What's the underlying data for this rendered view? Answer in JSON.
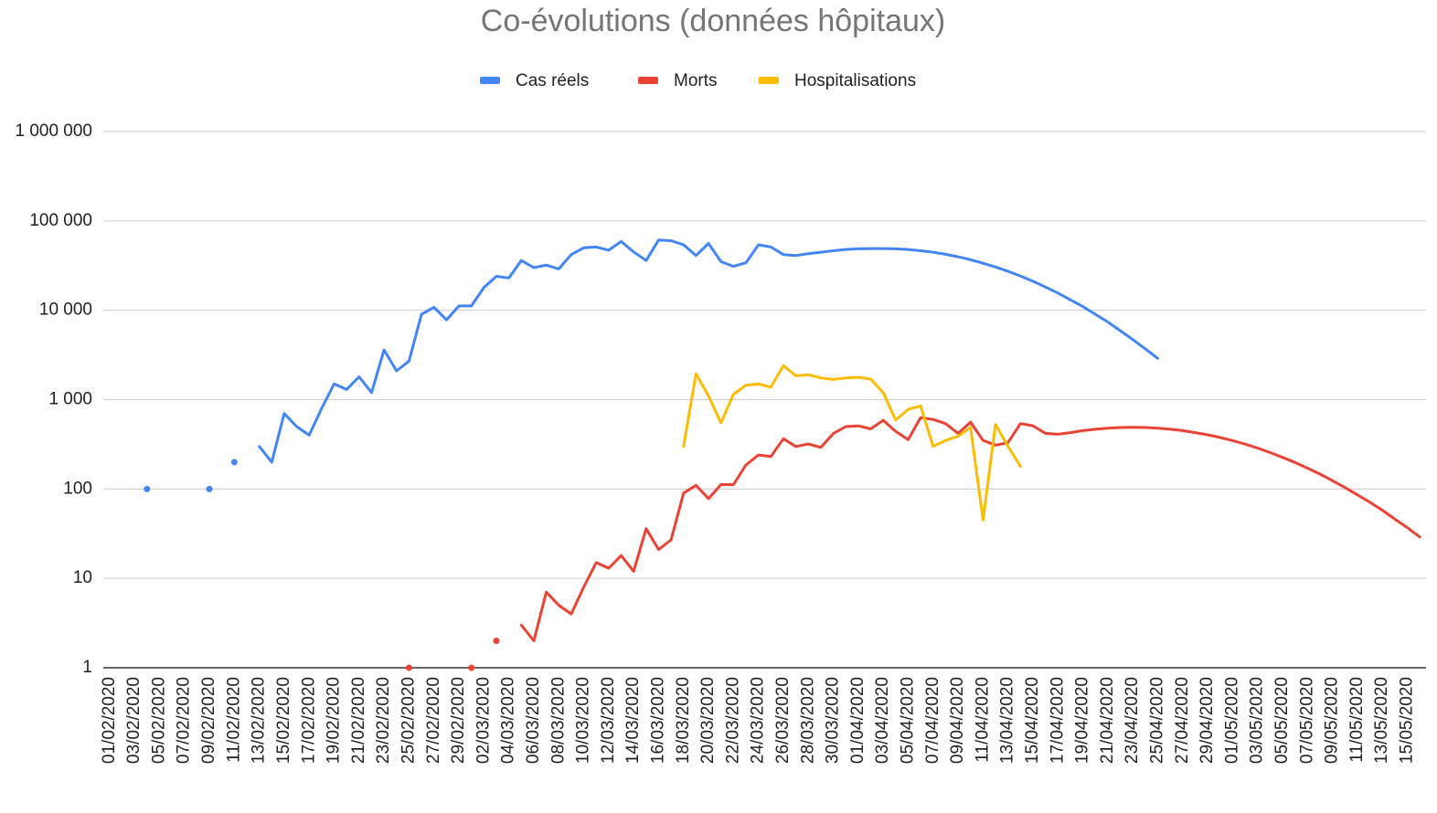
{
  "chart_data": {
    "type": "line",
    "title": "Co-évolutions (données hôpitaux)",
    "log_scale": true,
    "grid": true,
    "legend": "top",
    "ylim": [
      1,
      1000000
    ],
    "yticks": [
      {
        "value": 1,
        "label": "1"
      },
      {
        "value": 10,
        "label": "10"
      },
      {
        "value": 100,
        "label": "100"
      },
      {
        "value": 1000,
        "label": "1 000"
      },
      {
        "value": 10000,
        "label": "10 000"
      },
      {
        "value": 100000,
        "label": "100 000"
      },
      {
        "value": 1000000,
        "label": "1 000 000"
      }
    ],
    "categories": [
      "01/02/2020",
      null,
      "03/02/2020",
      null,
      "05/02/2020",
      null,
      "07/02/2020",
      null,
      "09/02/2020",
      null,
      "11/02/2020",
      null,
      "13/02/2020",
      null,
      "15/02/2020",
      null,
      "17/02/2020",
      null,
      "19/02/2020",
      null,
      "21/02/2020",
      null,
      "23/02/2020",
      null,
      "25/02/2020",
      null,
      "27/02/2020",
      null,
      "29/02/2020",
      null,
      "02/03/2020",
      null,
      "04/03/2020",
      null,
      "06/03/2020",
      null,
      "08/03/2020",
      null,
      "10/03/2020",
      null,
      "12/03/2020",
      null,
      "14/03/2020",
      null,
      "16/03/2020",
      null,
      "18/03/2020",
      null,
      "20/03/2020",
      null,
      "22/03/2020",
      null,
      "24/03/2020",
      null,
      "26/03/2020",
      null,
      "28/03/2020",
      null,
      "30/03/2020",
      null,
      "01/04/2020",
      null,
      "03/04/2020",
      null,
      "05/04/2020",
      null,
      "07/04/2020",
      null,
      "09/04/2020",
      null,
      "11/04/2020",
      null,
      "13/04/2020",
      null,
      "15/04/2020",
      null,
      "17/04/2020",
      null,
      "19/04/2020",
      null,
      "21/04/2020",
      null,
      "23/04/2020",
      null,
      "25/04/2020",
      null,
      "27/04/2020",
      null,
      "29/04/2020",
      null,
      "01/05/2020",
      null,
      "03/05/2020",
      null,
      "05/05/2020",
      null,
      "07/05/2020",
      null,
      "09/05/2020",
      null,
      "11/05/2020",
      null,
      "13/05/2020",
      null,
      "15/05/2020",
      null
    ],
    "series": [
      {
        "name": "Cas réels",
        "color": "#4285f4",
        "values": [
          null,
          null,
          null,
          100,
          null,
          null,
          null,
          null,
          100,
          null,
          200,
          null,
          300,
          200,
          700,
          500,
          400,
          800,
          1500,
          1300,
          1800,
          1200,
          3600,
          2100,
          2700,
          9000,
          10800,
          7800,
          11200,
          11200,
          18000,
          24000,
          23000,
          36000,
          30000,
          32000,
          29000,
          42000,
          50000,
          51000,
          47000,
          59000,
          45000,
          36000,
          61000,
          60000,
          54000,
          41000,
          56000,
          35000,
          31000,
          34000,
          54000,
          51000,
          42000,
          41000,
          43000,
          44600,
          46400,
          47900,
          48700,
          49000,
          49000,
          48700,
          47900,
          46400,
          44600,
          42300,
          39700,
          36800,
          33600,
          30500,
          27300,
          24200,
          21100,
          18200,
          15600,
          13100,
          11000,
          9000,
          7400,
          5900,
          4700,
          3700,
          2900,
          null,
          null,
          null,
          null,
          null,
          null,
          null,
          null,
          null,
          null,
          null,
          null,
          null,
          null,
          null,
          null,
          null,
          null,
          null,
          null,
          null
        ]
      },
      {
        "name": "Morts",
        "color": "#ea4335",
        "values": [
          null,
          null,
          null,
          null,
          null,
          null,
          null,
          null,
          null,
          null,
          null,
          null,
          null,
          null,
          null,
          null,
          null,
          null,
          null,
          null,
          null,
          null,
          null,
          null,
          1,
          null,
          null,
          null,
          null,
          1,
          null,
          2,
          null,
          3,
          2,
          7,
          5,
          4,
          8,
          15,
          13,
          18,
          12,
          36,
          21,
          27,
          90,
          110,
          78,
          112,
          112,
          186,
          240,
          231,
          365,
          299,
          319,
          292,
          418,
          499,
          509,
          471,
          588,
          441,
          357,
          630,
          600,
          540,
          420,
          560,
          350,
          310,
          330,
          540,
          510,
          420,
          410,
          428,
          450,
          467,
          480,
          488,
          490,
          488,
          480,
          467,
          450,
          428,
          404,
          377,
          348,
          318,
          287,
          256,
          226,
          198,
          171,
          147,
          124,
          104,
          86,
          71,
          58,
          46,
          37,
          29
        ]
      },
      {
        "name": "Hospitalisations",
        "color": "#fbbc04",
        "values": [
          null,
          null,
          null,
          null,
          null,
          null,
          null,
          null,
          null,
          null,
          null,
          null,
          null,
          null,
          null,
          null,
          null,
          null,
          null,
          null,
          null,
          null,
          null,
          null,
          null,
          null,
          null,
          null,
          null,
          null,
          null,
          null,
          null,
          null,
          null,
          null,
          null,
          null,
          null,
          null,
          null,
          null,
          null,
          null,
          null,
          null,
          300,
          1950,
          1100,
          550,
          1150,
          1450,
          1500,
          1380,
          2400,
          1850,
          1900,
          1750,
          1680,
          1750,
          1780,
          1700,
          1200,
          590,
          780,
          850,
          300,
          350,
          390,
          490,
          45,
          530,
          300,
          180,
          null,
          null,
          null,
          null,
          null,
          null,
          null,
          null,
          null,
          null,
          null,
          null,
          null,
          null,
          null,
          null,
          null,
          null,
          null,
          null,
          null,
          null,
          null,
          null,
          null,
          null,
          null,
          null,
          null,
          null,
          null,
          null
        ]
      }
    ]
  }
}
